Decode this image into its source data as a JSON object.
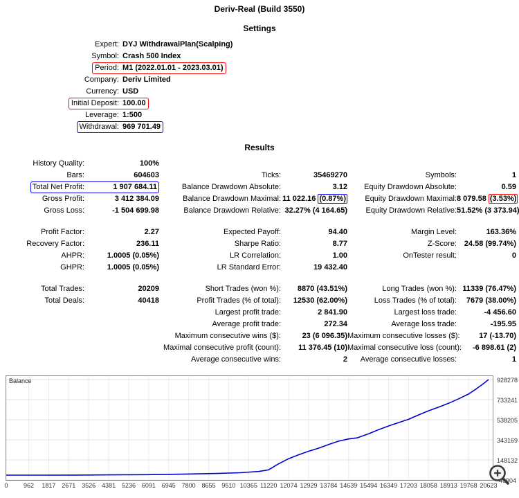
{
  "title": "Deriv-Real (Build 3550)",
  "colors": {
    "highlight_red": "#ff0000",
    "highlight_blue": "#0000ff",
    "chart_line": "#0000cc"
  },
  "settings": {
    "heading": "Settings",
    "rows": [
      {
        "label": "Expert:",
        "value": "DYJ WithdrawalPlan(Scalping)"
      },
      {
        "label": "Symbol:",
        "value": "Crash 500 Index"
      },
      {
        "label": "Period:",
        "value": "M1 (2022.01.01 - 2023.03.01)",
        "box": "red"
      },
      {
        "label": "Company:",
        "value": "Deriv Limited"
      },
      {
        "label": "Currency:",
        "value": "USD"
      },
      {
        "label": "Initial Deposit:",
        "value": "100.00",
        "box": "red"
      },
      {
        "label": "Leverage:",
        "value": "1:500"
      },
      {
        "label": "Withdrawal:",
        "value": "969 701.49",
        "box": "blue"
      }
    ]
  },
  "results": {
    "heading": "Results",
    "groups": [
      {
        "rows": [
          [
            {
              "label": "History Quality:",
              "value": "100%"
            },
            null,
            null
          ],
          [
            {
              "label": "Bars:",
              "value": "604603"
            },
            {
              "label": "Ticks:",
              "value": "35469270"
            },
            {
              "label": "Symbols:",
              "value": "1"
            }
          ],
          [
            {
              "label": "Total Net Profit:",
              "value": "1 907 684.11",
              "box": "blue"
            },
            {
              "label": "Balance Drawdown Absolute:",
              "value": "3.12"
            },
            {
              "label": "Equity Drawdown Absolute:",
              "value": "0.59"
            }
          ],
          [
            {
              "label": "Gross Profit:",
              "value": "3 412 384.09"
            },
            {
              "label": "Balance Drawdown Maximal:",
              "value": "11 022.16",
              "pct": "(0.87%)",
              "pct_box": "blue"
            },
            {
              "label": "Equity Drawdown Maximal:",
              "value": "8 079.58",
              "pct": "(3.53%)",
              "pct_box": "red"
            }
          ],
          [
            {
              "label": "Gross Loss:",
              "value": "-1 504 699.98"
            },
            {
              "label": "Balance Drawdown Relative:",
              "value": "32.27% (4 164.65)"
            },
            {
              "label": "Equity Drawdown Relative:",
              "value": "51.52% (3 373.94)"
            }
          ]
        ]
      },
      {
        "rows": [
          [
            {
              "label": "Profit Factor:",
              "value": "2.27"
            },
            {
              "label": "Expected Payoff:",
              "value": "94.40"
            },
            {
              "label": "Margin Level:",
              "value": "163.36%"
            }
          ],
          [
            {
              "label": "Recovery Factor:",
              "value": "236.11"
            },
            {
              "label": "Sharpe Ratio:",
              "value": "8.77"
            },
            {
              "label": "Z-Score:",
              "value": "24.58 (99.74%)"
            }
          ],
          [
            {
              "label": "AHPR:",
              "value": "1.0005 (0.05%)"
            },
            {
              "label": "LR Correlation:",
              "value": "1.00"
            },
            {
              "label": "OnTester result:",
              "value": "0"
            }
          ],
          [
            {
              "label": "GHPR:",
              "value": "1.0005 (0.05%)"
            },
            {
              "label": "LR Standard Error:",
              "value": "19 432.40"
            },
            null
          ]
        ]
      },
      {
        "rows": [
          [
            {
              "label": "Total Trades:",
              "value": "20209"
            },
            {
              "label": "Short Trades (won %):",
              "value": "8870 (43.51%)"
            },
            {
              "label": "Long Trades (won %):",
              "value": "11339 (76.47%)"
            }
          ],
          [
            {
              "label": "Total Deals:",
              "value": "40418"
            },
            {
              "label": "Profit Trades (% of total):",
              "value": "12530 (62.00%)"
            },
            {
              "label": "Loss Trades (% of total):",
              "value": "7679 (38.00%)"
            }
          ],
          [
            null,
            {
              "label": "Largest profit trade:",
              "value": "2 841.90"
            },
            {
              "label": "Largest loss trade:",
              "value": "-4 456.60"
            }
          ],
          [
            null,
            {
              "label": "Average profit trade:",
              "value": "272.34"
            },
            {
              "label": "Average loss trade:",
              "value": "-195.95"
            }
          ],
          [
            null,
            {
              "label": "Maximum consecutive wins ($):",
              "value": "23 (6 096.35)"
            },
            {
              "label": "Maximum consecutive losses ($):",
              "value": "17 (-13.70)"
            }
          ],
          [
            null,
            {
              "label": "Maximal consecutive profit (count):",
              "value": "11 376.45 (10)"
            },
            {
              "label": "Maximal consecutive loss (count):",
              "value": "-6 898.61 (2)"
            }
          ],
          [
            null,
            {
              "label": "Average consecutive wins:",
              "value": "2"
            },
            {
              "label": "Average consecutive losses:",
              "value": "1"
            }
          ]
        ]
      }
    ]
  },
  "chart_data": {
    "type": "line",
    "title": "Balance",
    "legend_position": "top-left",
    "grid": true,
    "xlim": [
      0,
      20800
    ],
    "ylim": [
      -46904,
      962000
    ],
    "x_ticks": [
      0,
      962,
      1817,
      2671,
      3526,
      4381,
      5236,
      6091,
      6945,
      7800,
      8655,
      9510,
      10365,
      11220,
      12074,
      12929,
      13784,
      14639,
      15494,
      16349,
      17203,
      18058,
      18913,
      19768,
      20623
    ],
    "y_ticks": [
      928278,
      733241,
      538205,
      343169,
      148132,
      -46904
    ],
    "series": [
      {
        "name": "Balance",
        "color": "#0000cc",
        "x": [
          0,
          1500,
          3000,
          4500,
          6000,
          7500,
          9000,
          10000,
          10800,
          11220,
          11600,
          12074,
          12500,
          12929,
          13350,
          13784,
          14200,
          14639,
          15000,
          15494,
          15900,
          16349,
          16800,
          17203,
          17600,
          18058,
          18500,
          18913,
          19350,
          19768,
          20100,
          20400,
          20623
        ],
        "y": [
          100,
          400,
          1100,
          2600,
          5200,
          9500,
          16000,
          24000,
          36000,
          52000,
          105000,
          160000,
          198000,
          232000,
          262000,
          298000,
          330000,
          352000,
          362000,
          402000,
          440000,
          478000,
          512000,
          542000,
          582000,
          625000,
          662000,
          698000,
          742000,
          788000,
          838000,
          888000,
          928278
        ]
      }
    ]
  }
}
